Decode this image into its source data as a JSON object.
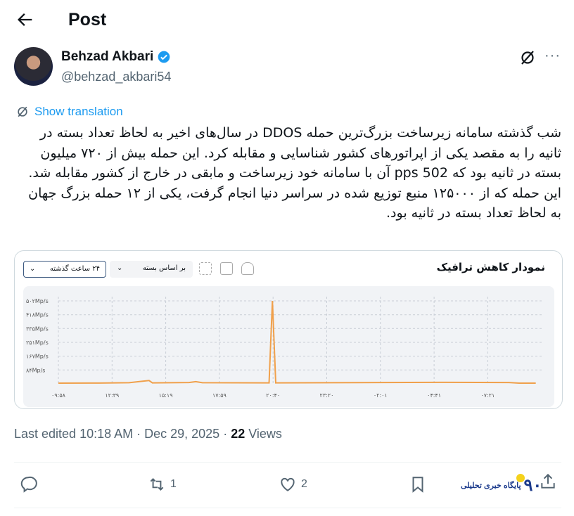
{
  "header": {
    "title": "Post",
    "back_icon": "arrow-left-icon"
  },
  "author": {
    "name": "Behzad Akbari",
    "handle": "@behzad_akbari54",
    "verified": true,
    "verified_color": "#1d9bf0"
  },
  "translation": {
    "label": "Show translation"
  },
  "post": {
    "text": "شب گذشته سامانه زیرساخت بزرگ‌ترین حمله DDOS در سال‌های اخیر به لحاظ تعداد بسته در ثانیه را به مقصد یکی از اپراتورهای کشور شناسایی و مقابله کرد. این حمله بیش از ۷۲۰ میلیون بسته در ثانیه بود که 502 pps آن با سامانه خود زیرساخت و مابقی در خارج از کشور مقابله شد. این حمله که از ۱۲۵۰۰۰ منبع توزیع شده در سراسر دنیا انجام گرفت، یکی از ۱۲ حمله بزرگ جهان به لحاظ تعداد بسته در ثانیه بود."
  },
  "media": {
    "chart_title": "نمودار کاهش ترافیک",
    "range_select": "۲۴ ساعت گذشته",
    "mode_select": "بر اساس بسته"
  },
  "chart_data": {
    "type": "line",
    "title": "نمودار کاهش ترافیک",
    "color": "#f0a04b",
    "grid": true,
    "y_ticks": [
      "۸۴Mp/s",
      "۱۶۷Mp/s",
      "۲۵۱Mp/s",
      "۳۳۵Mp/s",
      "۴۱۸Mp/s",
      "۵۰۲Mp/s"
    ],
    "y_tick_values": [
      84,
      167,
      251,
      335,
      418,
      502
    ],
    "ylim": [
      0,
      502
    ],
    "x_ticks": [
      "۰۹:۵۸",
      "۱۲:۳۹",
      "۱۵:۱۹",
      "۱۷:۵۹",
      "۲۰:۴۰",
      "۲۳:۲۰",
      "۰۲:۰۱",
      "۰۴:۴۱",
      "۰۷:۲۱"
    ],
    "series": [
      {
        "points": [
          [
            "09:58",
            4
          ],
          [
            "12:00",
            5
          ],
          [
            "13:30",
            7
          ],
          [
            "14:30",
            20
          ],
          [
            "14:40",
            6
          ],
          [
            "16:30",
            8
          ],
          [
            "16:50",
            13
          ],
          [
            "17:10",
            7
          ],
          [
            "20:30",
            6
          ],
          [
            "20:40",
            502
          ],
          [
            "20:50",
            6
          ],
          [
            "23:30",
            7
          ],
          [
            "02:00",
            8
          ],
          [
            "05:00",
            9
          ],
          [
            "08:30",
            8
          ],
          [
            "09:00",
            4
          ],
          [
            "09:50",
            4
          ]
        ]
      }
    ]
  },
  "meta": {
    "edited": "Last edited 10:18 AM · Dec 29, 2025 · ",
    "views_count": "22",
    "views_label": " Views"
  },
  "actions": {
    "replies": "",
    "reposts": "1",
    "likes": "2"
  },
  "watermark": {
    "text": "پایگاه خبری تحلیلی"
  }
}
